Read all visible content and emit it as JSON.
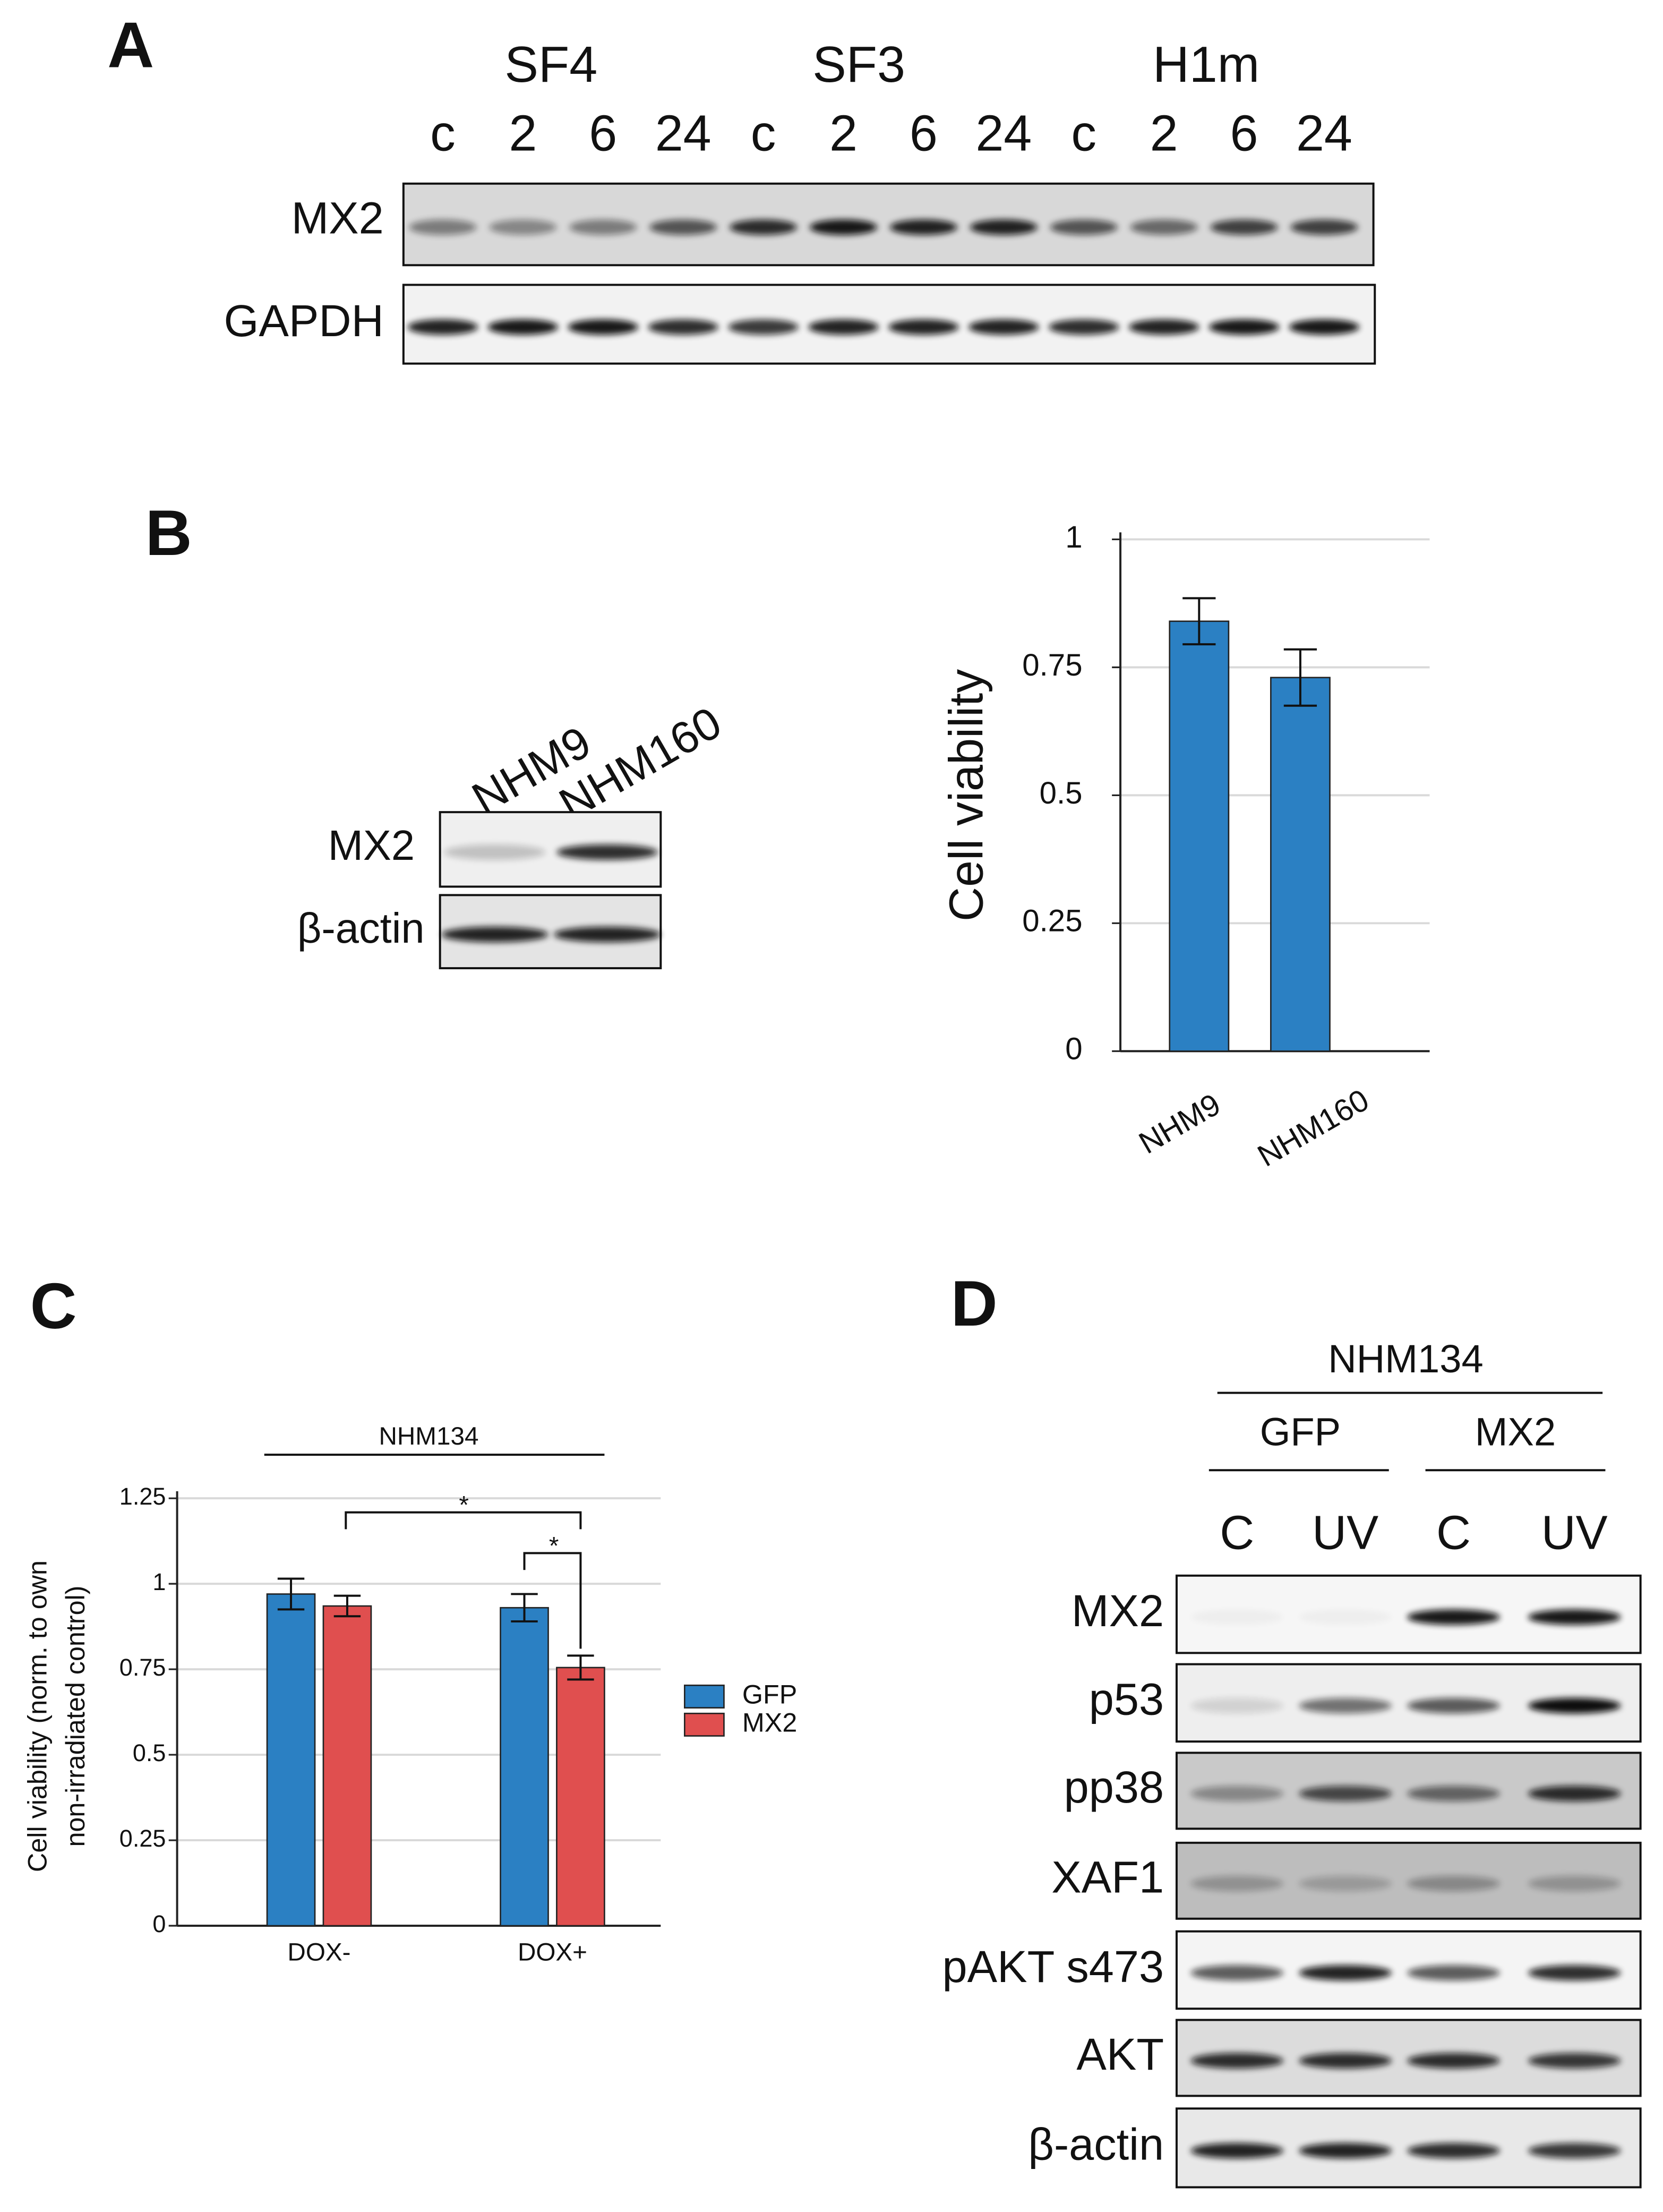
{
  "figure": {
    "panel_a": {
      "letter": "A",
      "groups": [
        "SF4",
        "SF3",
        "H1m"
      ],
      "lanes": [
        "c",
        "2",
        "6",
        "24",
        "c",
        "2",
        "6",
        "24",
        "c",
        "2",
        "6",
        "24"
      ],
      "blots": [
        "MX2",
        "GAPDH"
      ]
    },
    "panel_b": {
      "letter": "B",
      "lanes": [
        "NHM9",
        "NHM160"
      ],
      "blots": [
        "MX2",
        "β-actin"
      ]
    },
    "panel_c": {
      "letter": "C"
    },
    "panel_d": {
      "letter": "D",
      "cell_line": "NHM134",
      "groups": [
        "GFP",
        "MX2"
      ],
      "lanes": [
        "C",
        "UV",
        "C",
        "UV"
      ],
      "blots": [
        "MX2",
        "p53",
        "pp38",
        "XAF1",
        "pAKT s473",
        "AKT",
        "β-actin"
      ]
    }
  },
  "chart_data": [
    {
      "type": "bar",
      "y_label": "Cell viability",
      "categories": [
        "NHM9",
        "NHM160"
      ],
      "values": [
        0.84,
        0.73
      ],
      "errors": [
        0.045,
        0.055
      ],
      "color": "#2b80c3",
      "ylim": [
        0,
        1
      ],
      "yticks": [
        0,
        0.25,
        0.5,
        0.75,
        1
      ],
      "grid": true
    },
    {
      "type": "bar",
      "header": "NHM134",
      "y_label": [
        "Cell viability (norm. to own",
        "non-irradiated control)"
      ],
      "categories": [
        "DOX-",
        "DOX+"
      ],
      "series": [
        {
          "name": "GFP",
          "color": "#2b80c3",
          "values": [
            0.97,
            0.93
          ],
          "errors": [
            0.045,
            0.04
          ]
        },
        {
          "name": "MX2",
          "color": "#e04f4f",
          "values": [
            0.935,
            0.755
          ],
          "errors": [
            0.03,
            0.035
          ]
        }
      ],
      "annotations": [
        "*",
        "*"
      ],
      "ylim": [
        0,
        1.25
      ],
      "yticks": [
        0,
        0.25,
        0.5,
        0.75,
        1,
        1.25
      ],
      "grid": true,
      "legend": "right"
    }
  ]
}
